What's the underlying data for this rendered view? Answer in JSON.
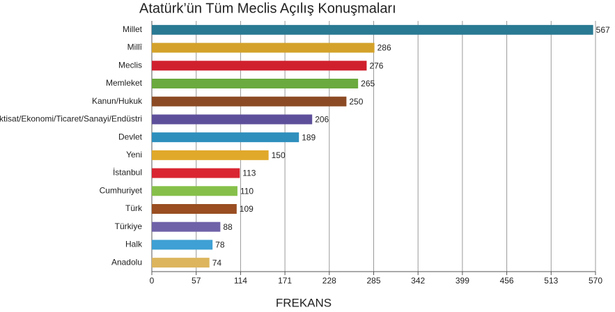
{
  "chart_data": {
    "type": "bar",
    "orientation": "horizontal",
    "title": "Atatürk’ün Tüm Meclis Açılış Konuşmaları",
    "xlabel": "FREKANS",
    "categories": [
      "Millet",
      "Millî",
      "Meclis",
      "Memleket",
      "Kanun/Hukuk",
      "İktisat/Ekonomi/Ticaret/Sanayi/Endüstri",
      "Devlet",
      "Yeni",
      "İstanbul",
      "Cumhuriyet",
      "Türk",
      "Türkiye",
      "Halk",
      "Anadolu"
    ],
    "values": [
      567,
      286,
      276,
      265,
      250,
      206,
      189,
      150,
      113,
      110,
      109,
      88,
      78,
      74
    ],
    "colors": [
      "#2a7a93",
      "#d4a22a",
      "#d0202e",
      "#6aaa3e",
      "#8b4a23",
      "#5e4f9b",
      "#2e8fbd",
      "#e0a92a",
      "#d92632",
      "#86c04a",
      "#9a4e22",
      "#6f62a8",
      "#3ea0d4",
      "#dcb55e"
    ],
    "xlim": [
      0,
      570
    ],
    "xticks": [
      0,
      57,
      114,
      171,
      228,
      285,
      342,
      399,
      456,
      513,
      570
    ],
    "grid": true
  }
}
